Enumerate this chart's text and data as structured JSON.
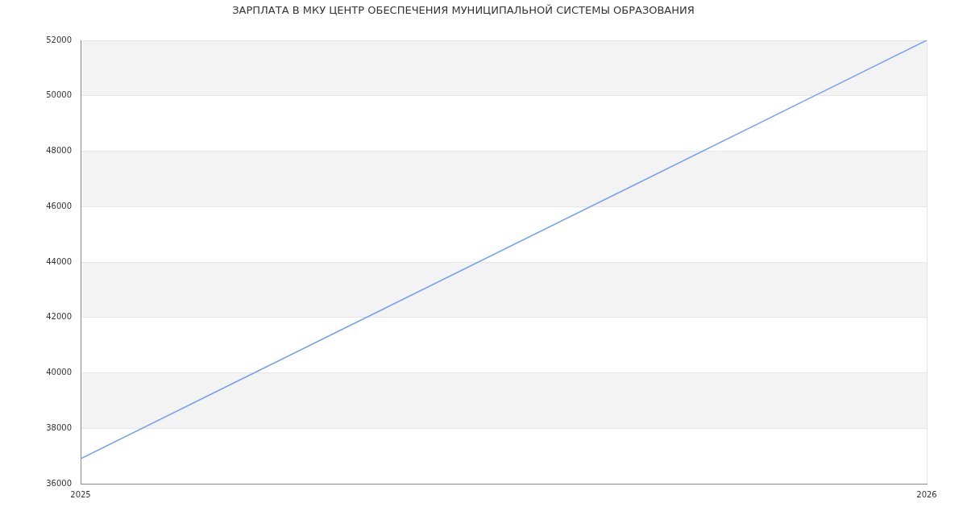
{
  "chart_data": {
    "type": "line",
    "title": "ЗАРПЛАТА В МКУ ЦЕНТР ОБЕСПЕЧЕНИЯ МУНИЦИПАЛЬНОЙ СИСТЕМЫ ОБРАЗОВАНИЯ",
    "x": [
      2025,
      2026
    ],
    "series": [
      {
        "color": "#6f9ef5",
        "values": [
          36900,
          52000
        ]
      }
    ],
    "xlim": [
      2025,
      2026
    ],
    "xticks": [
      2025,
      2026
    ],
    "ylim": [
      36000,
      52000
    ],
    "yticks": [
      36000,
      38000,
      40000,
      42000,
      44000,
      46000,
      48000,
      50000,
      52000
    ],
    "grid": true,
    "marker": "none",
    "line_style": "solid"
  }
}
